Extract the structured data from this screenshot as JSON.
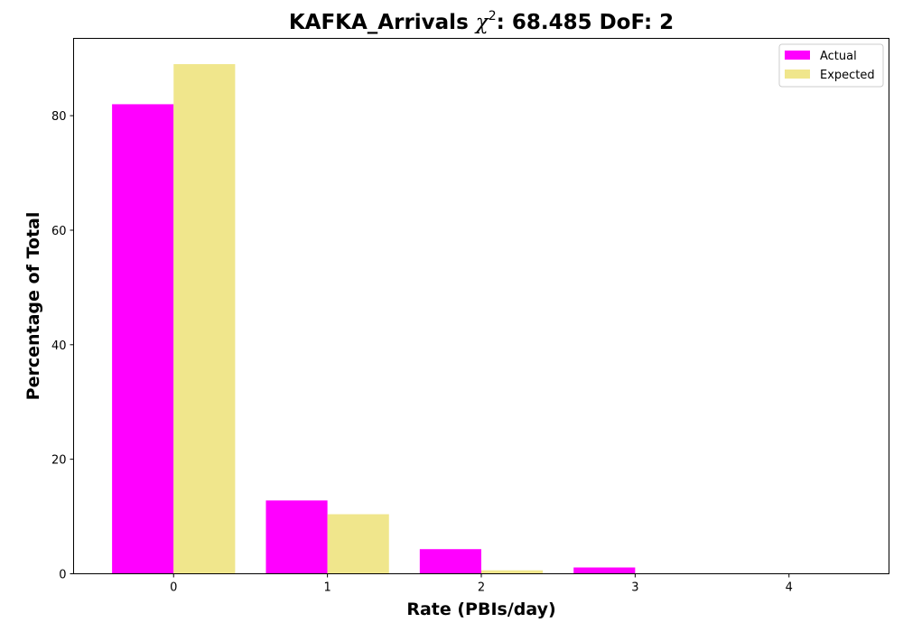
{
  "chart_data": {
    "type": "bar",
    "title": {
      "prefix": "KAFKA_Arrivals ",
      "chi_symbol": "χ",
      "chi_superscript": "2",
      "suffix": ": 68.485 DoF: 2"
    },
    "xlabel": "Rate (PBIs/day)",
    "ylabel": "Percentage of Total",
    "categories": [
      0,
      1,
      2,
      3,
      4
    ],
    "xlim": [
      -0.65,
      4.65
    ],
    "ylim": [
      0,
      93.5
    ],
    "yticks": [
      0,
      20,
      40,
      60,
      80
    ],
    "grid": false,
    "legend_position": "top-right",
    "series": [
      {
        "name": "Actual",
        "color": "#ff00ff",
        "values": [
          82.0,
          12.8,
          4.3,
          1.1,
          0.0
        ]
      },
      {
        "name": "Expected",
        "color": "#f0e68c",
        "values": [
          89.0,
          10.4,
          0.6,
          0.0,
          0.0
        ]
      }
    ]
  }
}
